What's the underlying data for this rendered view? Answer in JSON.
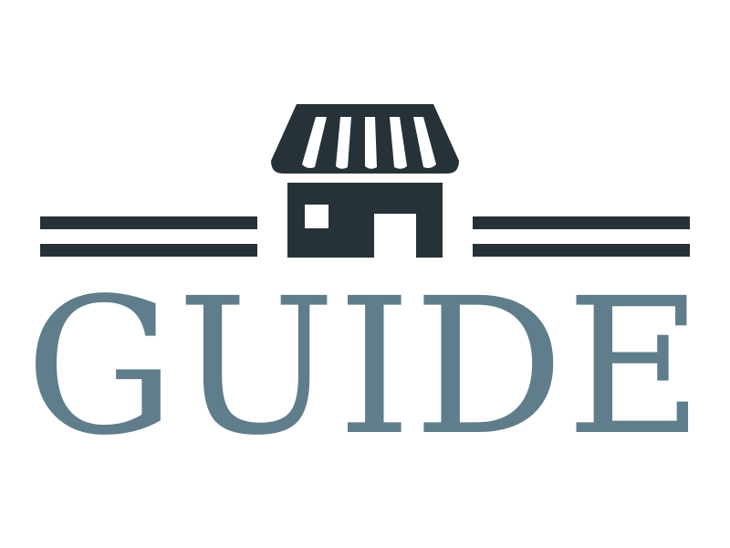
{
  "logo": {
    "wordmark": "GUIDE",
    "icon": "storefront-icon",
    "colors": {
      "icon": "#263238",
      "wordmark": "#607d8b",
      "background": "#ffffff"
    }
  }
}
